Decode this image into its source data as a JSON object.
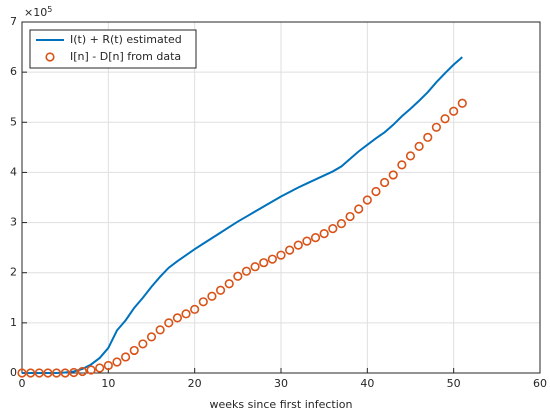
{
  "chart_data": {
    "type": "line",
    "x_label": "weeks since first infection",
    "y_multiplier": "×10",
    "y_multiplier_exponent": "5",
    "x": [
      0,
      1,
      2,
      3,
      4,
      5,
      6,
      7,
      8,
      9,
      10,
      11,
      12,
      13,
      14,
      15,
      16,
      17,
      18,
      19,
      20,
      21,
      22,
      23,
      24,
      25,
      26,
      27,
      28,
      29,
      30,
      31,
      32,
      33,
      34,
      35,
      36,
      37,
      38,
      39,
      40,
      41,
      42,
      43,
      44,
      45,
      46,
      47,
      48,
      49,
      50,
      51
    ],
    "series": [
      {
        "name": "I(t) + R(t) estimated",
        "color": "#0072bd",
        "mode": "line",
        "values": [
          0,
          0,
          0,
          0,
          0,
          0.01,
          0.03,
          0.08,
          0.17,
          0.3,
          0.5,
          0.85,
          1.05,
          1.3,
          1.5,
          1.72,
          1.92,
          2.1,
          2.23,
          2.35,
          2.47,
          2.58,
          2.69,
          2.8,
          2.91,
          3.02,
          3.12,
          3.22,
          3.32,
          3.42,
          3.52,
          3.61,
          3.7,
          3.78,
          3.86,
          3.94,
          4.02,
          4.12,
          4.27,
          4.42,
          4.55,
          4.68,
          4.8,
          4.95,
          5.12,
          5.27,
          5.43,
          5.6,
          5.8,
          5.98,
          6.15,
          6.3
        ]
      },
      {
        "name": "I[n] - D[n] from data",
        "color": "#d95319",
        "mode": "markers",
        "values": [
          0,
          0,
          0,
          0,
          0,
          0,
          0.01,
          0.03,
          0.06,
          0.1,
          0.15,
          0.22,
          0.32,
          0.45,
          0.58,
          0.72,
          0.86,
          1.0,
          1.1,
          1.18,
          1.27,
          1.42,
          1.53,
          1.65,
          1.78,
          1.93,
          2.03,
          2.12,
          2.2,
          2.27,
          2.35,
          2.45,
          2.55,
          2.63,
          2.7,
          2.78,
          2.88,
          2.98,
          3.12,
          3.27,
          3.45,
          3.62,
          3.8,
          3.95,
          4.15,
          4.33,
          4.52,
          4.7,
          4.9,
          5.07,
          5.22,
          5.38
        ]
      }
    ],
    "xlim": [
      0,
      60
    ],
    "xticks": [
      0,
      10,
      20,
      30,
      40,
      50,
      60
    ],
    "ylim": [
      0,
      7
    ],
    "yticks": [
      0,
      1,
      2,
      3,
      4,
      5,
      6,
      7
    ],
    "grid": true,
    "legend": "northwest"
  }
}
